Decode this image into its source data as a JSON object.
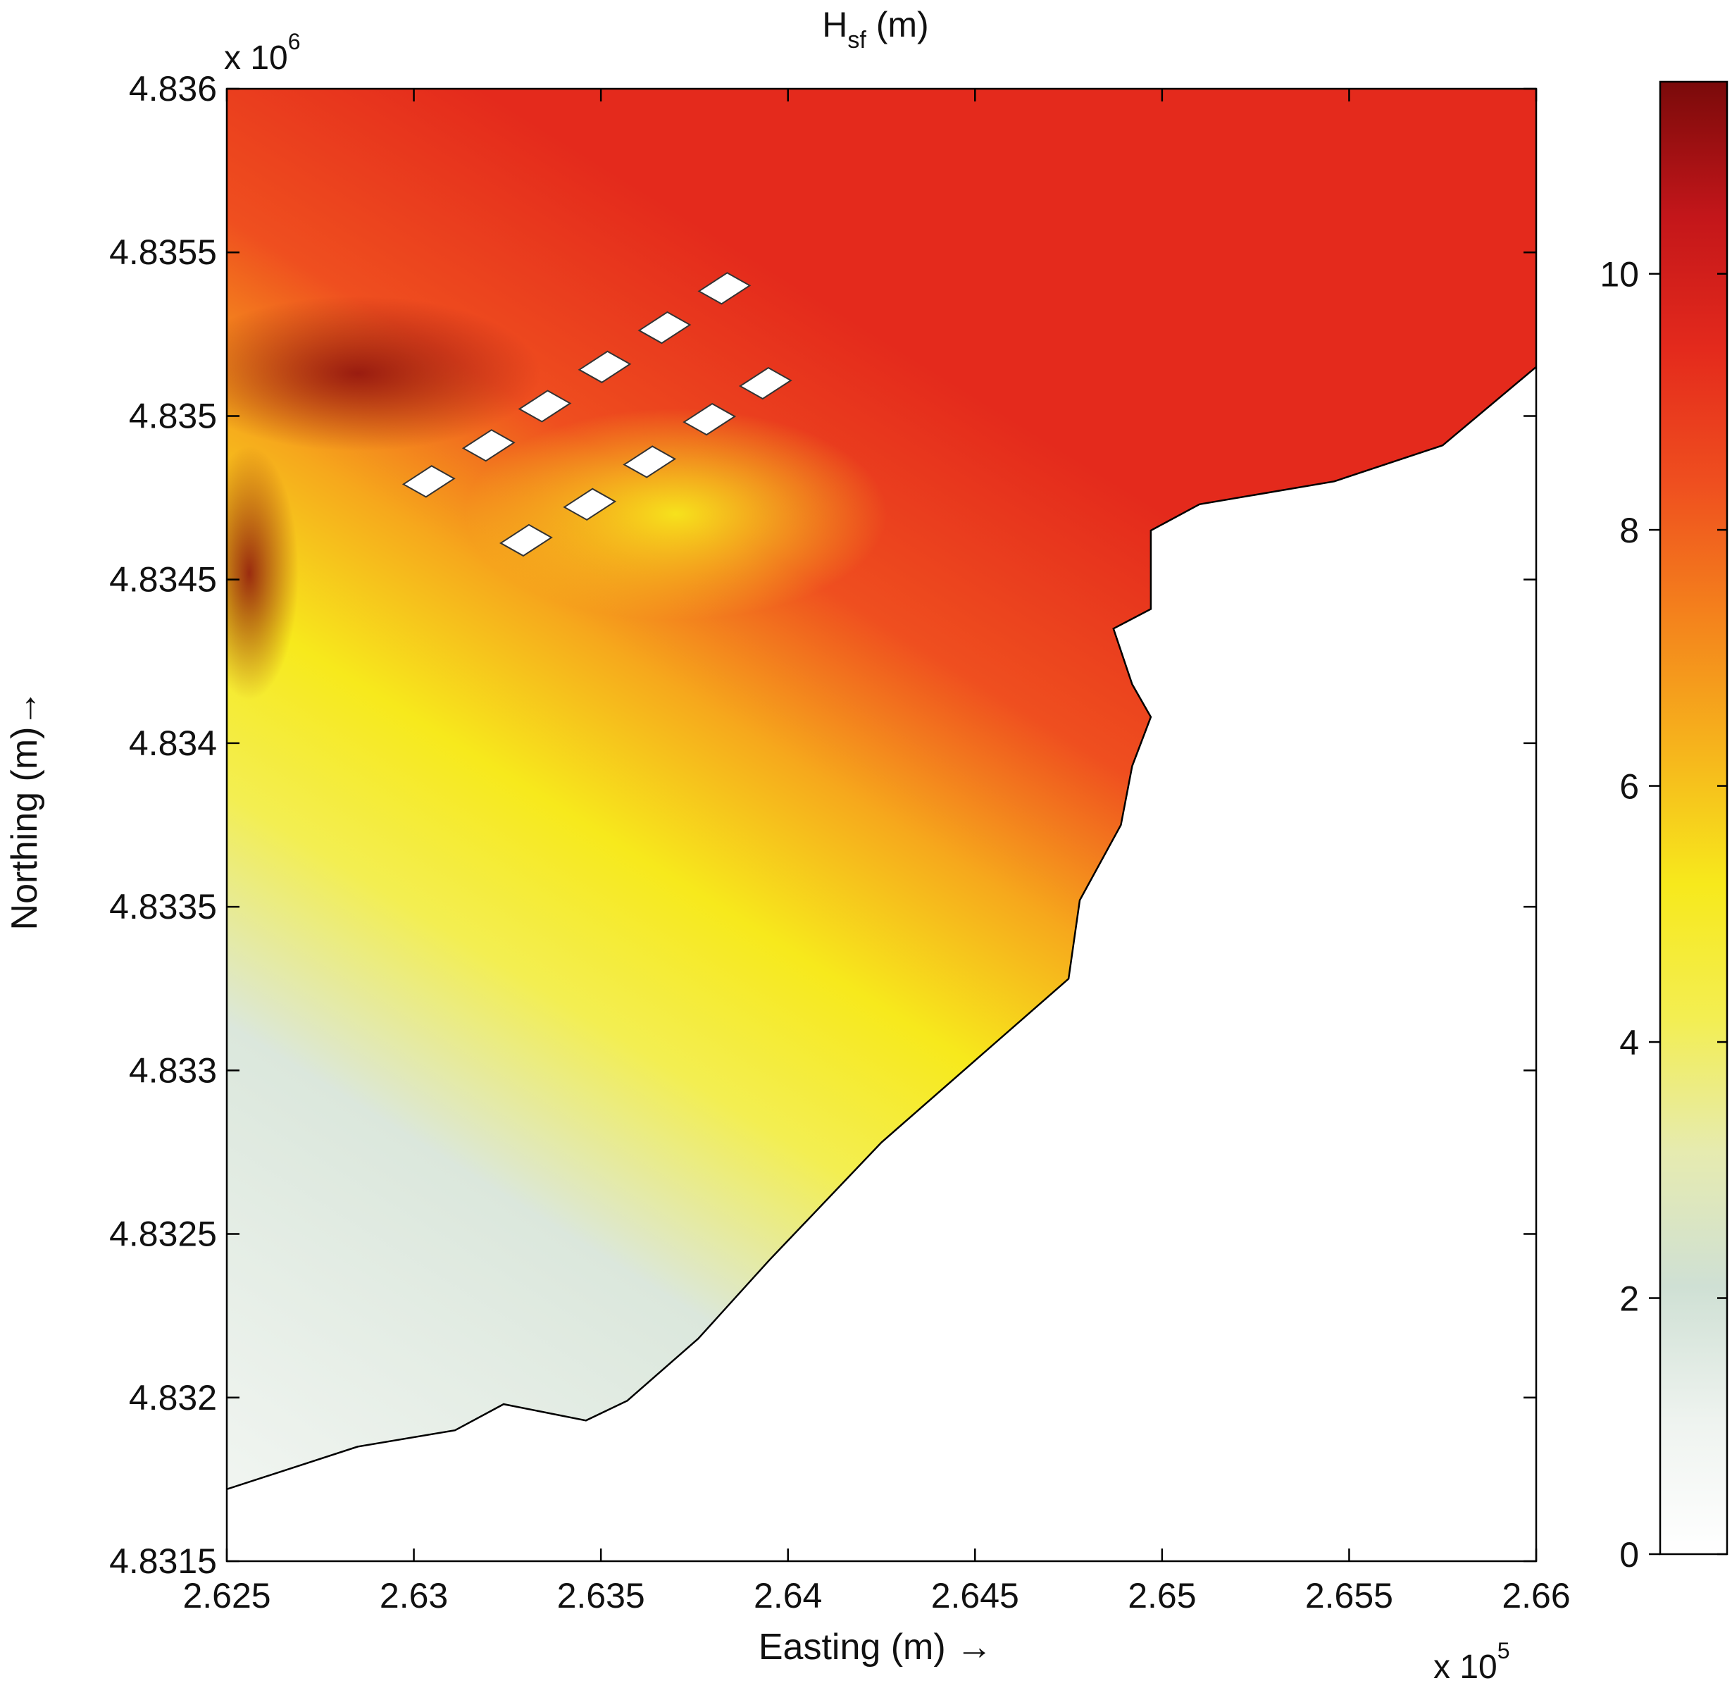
{
  "chart_data": {
    "type": "heatmap",
    "title": "H",
    "title_subscript": "sf",
    "title_suffix": " (m)",
    "xlabel": "Easting (m) →",
    "ylabel": "Northing (m)→",
    "x_multiplier": {
      "base": "x 10",
      "exponent": "5"
    },
    "y_multiplier": {
      "base": "x 10",
      "exponent": "6"
    },
    "xlim": [
      2.625,
      2.66
    ],
    "ylim": [
      4.8315,
      4.836
    ],
    "x_ticks": [
      2.625,
      2.63,
      2.635,
      2.64,
      2.645,
      2.65,
      2.655,
      2.66
    ],
    "x_tick_labels": [
      "2.625",
      "2.63",
      "2.635",
      "2.64",
      "2.645",
      "2.65",
      "2.655",
      "2.66"
    ],
    "y_ticks": [
      4.8315,
      4.832,
      4.8325,
      4.833,
      4.8335,
      4.834,
      4.8345,
      4.835,
      4.8355,
      4.836
    ],
    "y_tick_labels": [
      "4.8315",
      "4.832",
      "4.8325",
      "4.833",
      "4.8335",
      "4.834",
      "4.8345",
      "4.835",
      "4.8355",
      "4.836"
    ],
    "colorbar": {
      "range": [
        0,
        11.5
      ],
      "ticks": [
        0,
        2,
        4,
        6,
        8,
        10
      ],
      "tick_labels": [
        "0",
        "2",
        "4",
        "6",
        "8",
        "10"
      ],
      "colormap": [
        "#ffffff",
        "#eef3ef",
        "#cfe0d4",
        "#e6ebb0",
        "#f3ee52",
        "#f7e91c",
        "#f6b51c",
        "#f4831c",
        "#ef4f1f",
        "#e42a1c",
        "#c3161a",
        "#7a0a0a"
      ]
    },
    "coastline": [
      [
        2.625,
        4.83172
      ],
      [
        2.6285,
        4.83185
      ],
      [
        2.6311,
        4.8319
      ],
      [
        2.6324,
        4.83198
      ],
      [
        2.6346,
        4.83193
      ],
      [
        2.6357,
        4.83199
      ],
      [
        2.6376,
        4.83218
      ],
      [
        2.6395,
        4.83242
      ],
      [
        2.6425,
        4.83278
      ],
      [
        2.6452,
        4.83305
      ],
      [
        2.6475,
        4.83328
      ],
      [
        2.6478,
        4.83352
      ],
      [
        2.6489,
        4.83375
      ],
      [
        2.6492,
        4.83393
      ],
      [
        2.6497,
        4.83408
      ],
      [
        2.6492,
        4.83418
      ],
      [
        2.6487,
        4.83435
      ],
      [
        2.6497,
        4.83441
      ],
      [
        2.6497,
        4.83465
      ],
      [
        2.651,
        4.83473
      ],
      [
        2.6546,
        4.8348
      ],
      [
        2.6575,
        4.83491
      ],
      [
        2.66,
        4.83515
      ]
    ],
    "structures": [
      [
        2.6304,
        4.8348
      ],
      [
        2.632,
        4.83491
      ],
      [
        2.6335,
        4.83503
      ],
      [
        2.6351,
        4.83515
      ],
      [
        2.6367,
        4.83527
      ],
      [
        2.6383,
        4.83539
      ],
      [
        2.633,
        4.83462
      ],
      [
        2.6347,
        4.83473
      ],
      [
        2.6363,
        4.83486
      ],
      [
        2.6379,
        4.83499
      ],
      [
        2.6394,
        4.8351
      ]
    ],
    "grid": false
  }
}
